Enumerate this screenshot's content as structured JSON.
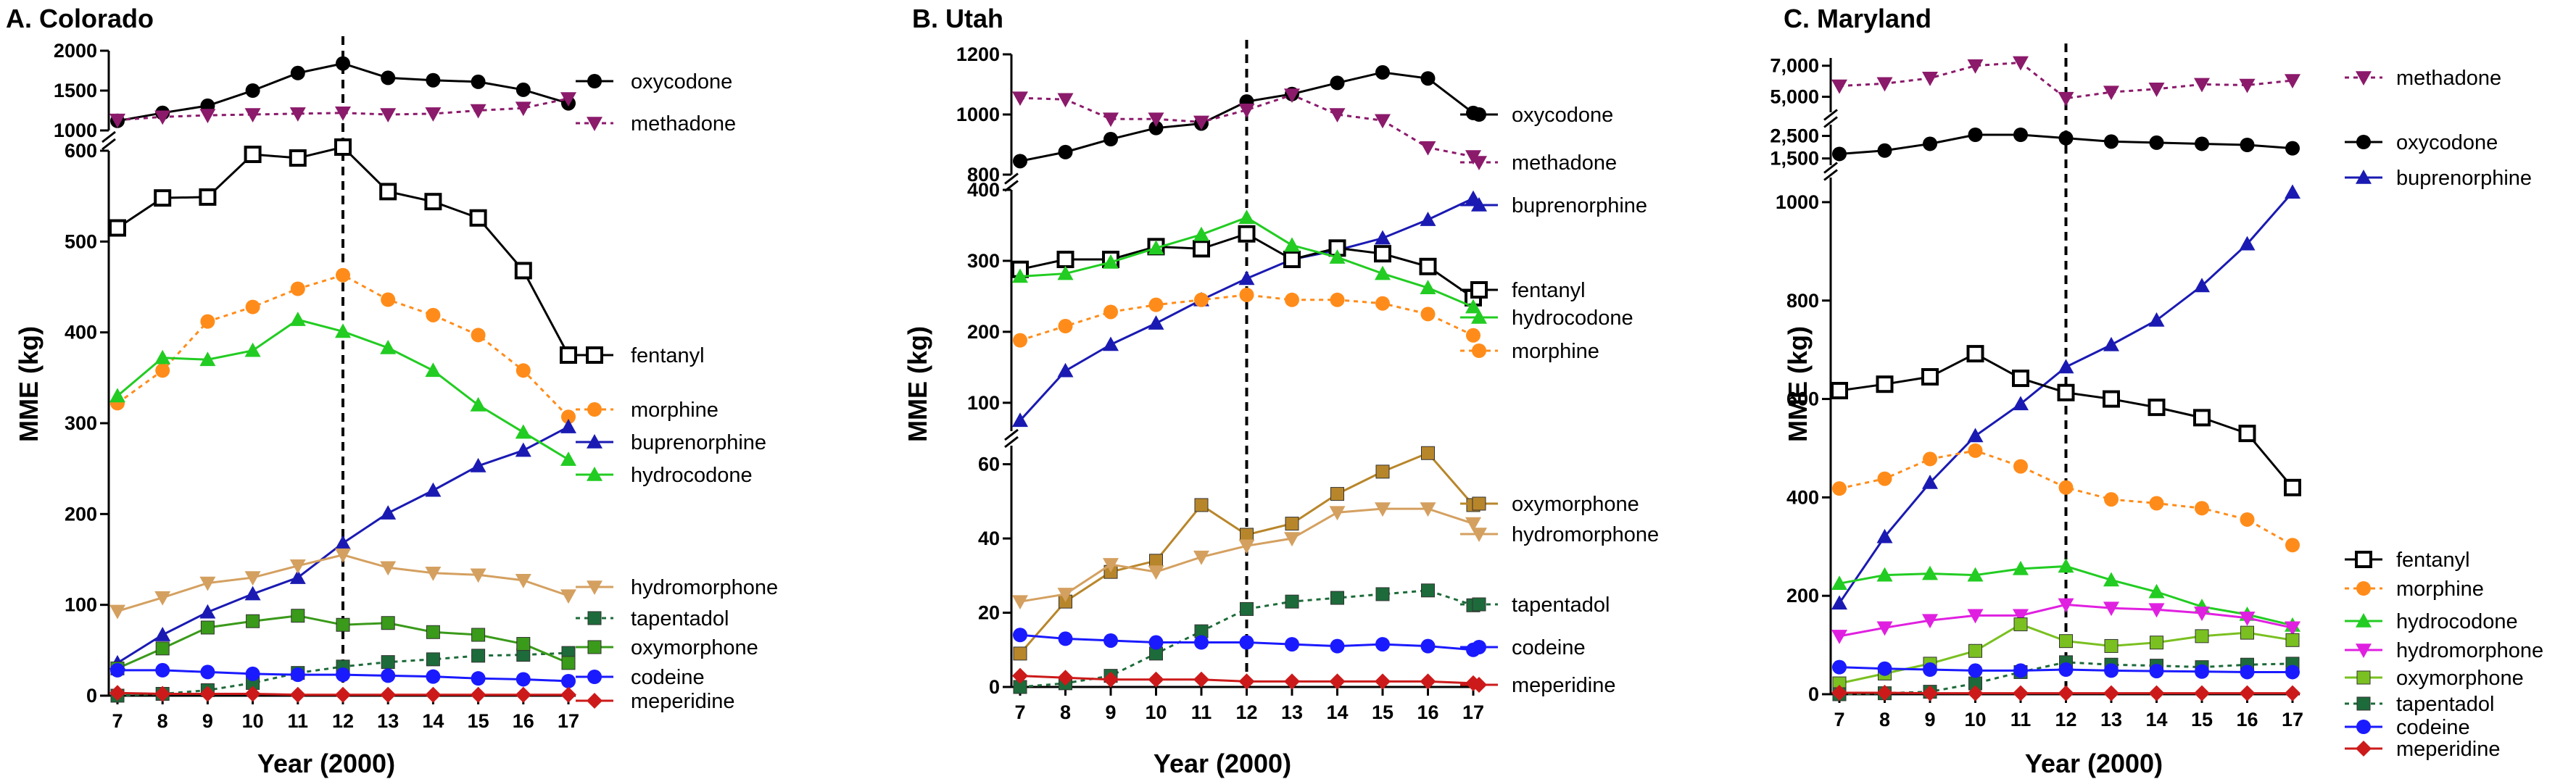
{
  "figure": {
    "xlabel": "Year (2000)",
    "ylabel": "MME (kg)",
    "policy_year": 12
  },
  "chart_data": [
    {
      "type": "line",
      "title": "A. Colorado",
      "xlabel": "Year (2000)",
      "ylabel": "MME (kg)",
      "x": [
        7,
        8,
        9,
        10,
        11,
        12,
        13,
        14,
        15,
        16,
        17
      ],
      "y_segments": [
        {
          "ylim": [
            0,
            600
          ],
          "ticks": [
            0,
            100,
            200,
            300,
            400,
            500,
            600
          ],
          "tick_labels": [
            "0",
            "100",
            "200",
            "300",
            "400",
            "500",
            "600"
          ]
        },
        {
          "ylim": [
            1000,
            2000
          ],
          "ticks": [
            1000,
            1500,
            2000
          ],
          "tick_labels": [
            "1000",
            "1500",
            "2000"
          ]
        }
      ],
      "series": [
        {
          "name": "oxycodone",
          "segment": 1,
          "color": "#000000",
          "marker": "circle",
          "dash": "solid",
          "values": [
            1120,
            1220,
            1310,
            1500,
            1720,
            1840,
            1660,
            1630,
            1610,
            1510,
            1340
          ]
        },
        {
          "name": "methadone",
          "segment": 1,
          "color": "#8b1a6b",
          "marker": "tri-down",
          "dash": "dotted",
          "values": [
            1130,
            1170,
            1190,
            1200,
            1210,
            1220,
            1200,
            1210,
            1250,
            1280,
            1400
          ]
        },
        {
          "name": "fentanyl",
          "segment": 0,
          "color": "#000000",
          "marker": "square-open",
          "dash": "solid",
          "values": [
            515,
            548,
            549,
            596,
            592,
            604,
            555,
            544,
            526,
            468,
            375
          ]
        },
        {
          "name": "morphine",
          "segment": 0,
          "color": "#ff8c1a",
          "marker": "circle",
          "dash": "dotted",
          "values": [
            322,
            358,
            412,
            428,
            448,
            463,
            436,
            419,
            397,
            358,
            307
          ]
        },
        {
          "name": "buprenorphine",
          "segment": 0,
          "color": "#1a1ab3",
          "marker": "triangle",
          "dash": "solid",
          "values": [
            36,
            67,
            92,
            112,
            130,
            168,
            201,
            226,
            253,
            270,
            296
          ]
        },
        {
          "name": "hydrocodone",
          "segment": 0,
          "color": "#22cc22",
          "marker": "triangle",
          "dash": "solid",
          "values": [
            330,
            372,
            370,
            380,
            414,
            401,
            383,
            358,
            320,
            290,
            260
          ]
        },
        {
          "name": "hydromorphone",
          "segment": 0,
          "color": "#d4a060",
          "marker": "tri-down",
          "dash": "solid",
          "values": [
            93,
            108,
            124,
            130,
            143,
            155,
            141,
            135,
            133,
            127,
            110
          ]
        },
        {
          "name": "tapentadol",
          "segment": 0,
          "color": "#1d6b3a",
          "marker": "square",
          "dash": "dotted",
          "values": [
            0,
            2,
            6,
            14,
            25,
            32,
            37,
            40,
            44,
            45,
            47
          ]
        },
        {
          "name": "oxymorphone",
          "segment": 0,
          "color": "#3a9a1a",
          "marker": "square",
          "dash": "solid",
          "values": [
            30,
            52,
            75,
            82,
            88,
            78,
            80,
            70,
            67,
            57,
            36
          ]
        },
        {
          "name": "codeine",
          "segment": 0,
          "color": "#1a1aff",
          "marker": "circle",
          "dash": "solid",
          "values": [
            28,
            28,
            26,
            24,
            23,
            23,
            22,
            21,
            19,
            18,
            16
          ]
        },
        {
          "name": "meperidine",
          "segment": 0,
          "color": "#cc1a1a",
          "marker": "diamond",
          "dash": "solid",
          "values": [
            3,
            2,
            2,
            2,
            1,
            1,
            1,
            1,
            1,
            1,
            1
          ]
        }
      ]
    },
    {
      "type": "line",
      "title": "B. Utah",
      "xlabel": "Year (2000)",
      "ylabel": "MME (kg)",
      "x": [
        7,
        8,
        9,
        10,
        11,
        12,
        13,
        14,
        15,
        16,
        17
      ],
      "y_segments": [
        {
          "ylim": [
            0,
            65
          ],
          "ticks": [
            0,
            20,
            40,
            60
          ],
          "tick_labels": [
            "0",
            "20",
            "40",
            "60"
          ]
        },
        {
          "ylim": [
            60,
            400
          ],
          "ticks": [
            100,
            200,
            300,
            400
          ],
          "tick_labels": [
            "100",
            "200",
            "300",
            "400"
          ]
        },
        {
          "ylim": [
            800,
            1200
          ],
          "ticks": [
            800,
            1000,
            1200
          ],
          "tick_labels": [
            "800",
            "1000",
            "1200"
          ]
        }
      ],
      "series": [
        {
          "name": "oxycodone",
          "segment": 2,
          "color": "#000000",
          "marker": "circle",
          "dash": "solid",
          "values": [
            845,
            875,
            918,
            955,
            970,
            1043,
            1068,
            1105,
            1140,
            1120,
            1005
          ]
        },
        {
          "name": "methadone",
          "segment": 2,
          "color": "#8b1a6b",
          "marker": "tri-down",
          "dash": "dotted",
          "values": [
            1055,
            1050,
            985,
            985,
            975,
            1015,
            1065,
            1000,
            980,
            890,
            860
          ]
        },
        {
          "name": "buprenorphine",
          "segment": 1,
          "color": "#1a1ab3",
          "marker": "triangle",
          "dash": "solid",
          "values": [
            75,
            145,
            182,
            212,
            245,
            275,
            302,
            315,
            332,
            358,
            388
          ]
        },
        {
          "name": "fentanyl",
          "segment": 1,
          "color": "#000000",
          "marker": "square-open",
          "dash": "solid",
          "values": [
            288,
            302,
            302,
            320,
            317,
            338,
            302,
            318,
            310,
            292,
            248
          ]
        },
        {
          "name": "hydrocodone",
          "segment": 1,
          "color": "#22cc22",
          "marker": "triangle",
          "dash": "solid",
          "values": [
            278,
            282,
            298,
            318,
            337,
            361,
            322,
            305,
            282,
            262,
            235
          ]
        },
        {
          "name": "morphine",
          "segment": 1,
          "color": "#ff8c1a",
          "marker": "circle",
          "dash": "dotted",
          "values": [
            188,
            208,
            228,
            238,
            245,
            252,
            245,
            245,
            240,
            225,
            195
          ]
        },
        {
          "name": "oxymorphone",
          "segment": 0,
          "color": "#b8862a",
          "marker": "square",
          "dash": "solid",
          "values": [
            9,
            23,
            31,
            34,
            49,
            41,
            44,
            52,
            58,
            63,
            49
          ]
        },
        {
          "name": "hydromorphone",
          "segment": 0,
          "color": "#d4a060",
          "marker": "tri-down",
          "dash": "solid",
          "values": [
            23,
            25,
            33,
            31,
            35,
            38,
            40,
            47,
            48,
            48,
            44
          ]
        },
        {
          "name": "tapentadol",
          "segment": 0,
          "color": "#1d6b3a",
          "marker": "square",
          "dash": "dotted",
          "values": [
            0,
            1,
            3,
            9,
            15,
            21,
            23,
            24,
            25,
            26,
            22
          ]
        },
        {
          "name": "codeine",
          "segment": 0,
          "color": "#1a1aff",
          "marker": "circle",
          "dash": "solid",
          "values": [
            14,
            13,
            12.5,
            12,
            12,
            12,
            11.5,
            11,
            11.5,
            11,
            10
          ]
        },
        {
          "name": "meperidine",
          "segment": 0,
          "color": "#cc1a1a",
          "marker": "diamond",
          "dash": "solid",
          "values": [
            3,
            2.5,
            2,
            2,
            2,
            1.5,
            1.5,
            1.5,
            1.5,
            1.5,
            1
          ]
        }
      ]
    },
    {
      "type": "line",
      "title": "C. Maryland",
      "xlabel": "Year (2000)",
      "ylabel": "MME (kg)",
      "x": [
        7,
        8,
        9,
        10,
        11,
        12,
        13,
        14,
        15,
        16,
        17
      ],
      "y_segments": [
        {
          "ylim": [
            0,
            1050
          ],
          "ticks": [
            0,
            200,
            400,
            600,
            800,
            1000
          ],
          "tick_labels": [
            "0",
            "200",
            "400",
            "600",
            "800",
            "1000"
          ]
        },
        {
          "ylim": [
            1200,
            3000
          ],
          "ticks": [
            1500,
            2500
          ],
          "tick_labels": [
            "1,500",
            "2,500"
          ]
        },
        {
          "ylim": [
            4000,
            7500
          ],
          "ticks": [
            5000,
            7000
          ],
          "tick_labels": [
            "5,000",
            "7,000"
          ]
        }
      ],
      "series": [
        {
          "name": "methadone",
          "segment": 2,
          "color": "#8b1a6b",
          "marker": "tri-down",
          "dash": "dotted",
          "values": [
            5700,
            5850,
            6200,
            7000,
            7200,
            4900,
            5300,
            5500,
            5800,
            5750,
            6050
          ]
        },
        {
          "name": "oxycodone",
          "segment": 1,
          "color": "#000000",
          "marker": "circle",
          "dash": "solid",
          "values": [
            1700,
            1850,
            2150,
            2550,
            2550,
            2400,
            2250,
            2200,
            2150,
            2100,
            1950
          ]
        },
        {
          "name": "buprenorphine",
          "segment": 0,
          "color": "#1a1ab3",
          "marker": "triangle",
          "dash": "solid",
          "values": [
            185,
            320,
            430,
            525,
            590,
            665,
            710,
            760,
            830,
            915,
            1020
          ]
        },
        {
          "name": "fentanyl",
          "segment": 0,
          "color": "#000000",
          "marker": "square-open",
          "dash": "solid",
          "values": [
            617,
            630,
            645,
            692,
            642,
            613,
            600,
            583,
            562,
            530,
            420
          ]
        },
        {
          "name": "morphine",
          "segment": 0,
          "color": "#ff8c1a",
          "marker": "circle",
          "dash": "dotted",
          "values": [
            418,
            438,
            478,
            495,
            463,
            420,
            396,
            388,
            378,
            355,
            303
          ]
        },
        {
          "name": "hydrocodone",
          "segment": 0,
          "color": "#22cc22",
          "marker": "triangle",
          "dash": "solid",
          "values": [
            225,
            242,
            245,
            242,
            255,
            260,
            232,
            208,
            178,
            162,
            140
          ]
        },
        {
          "name": "hydromorphone",
          "segment": 0,
          "color": "#e020e0",
          "marker": "tri-down",
          "dash": "solid",
          "values": [
            118,
            135,
            150,
            160,
            160,
            182,
            175,
            172,
            165,
            155,
            135
          ]
        },
        {
          "name": "oxymorphone",
          "segment": 0,
          "color": "#7ac020",
          "marker": "square",
          "dash": "solid",
          "values": [
            22,
            42,
            62,
            88,
            142,
            108,
            98,
            105,
            118,
            125,
            110
          ]
        },
        {
          "name": "tapentadol",
          "segment": 0,
          "color": "#1d6b3a",
          "marker": "square",
          "dash": "dotted",
          "values": [
            0,
            2,
            5,
            22,
            45,
            65,
            60,
            58,
            55,
            60,
            62
          ]
        },
        {
          "name": "codeine",
          "segment": 0,
          "color": "#1a1aff",
          "marker": "circle",
          "dash": "solid",
          "values": [
            55,
            52,
            50,
            48,
            48,
            50,
            48,
            47,
            46,
            45,
            45
          ]
        },
        {
          "name": "meperidine",
          "segment": 0,
          "color": "#cc1a1a",
          "marker": "diamond",
          "dash": "solid",
          "values": [
            3,
            3,
            2,
            2,
            2,
            2,
            2,
            2,
            2,
            2,
            2
          ]
        }
      ]
    }
  ]
}
